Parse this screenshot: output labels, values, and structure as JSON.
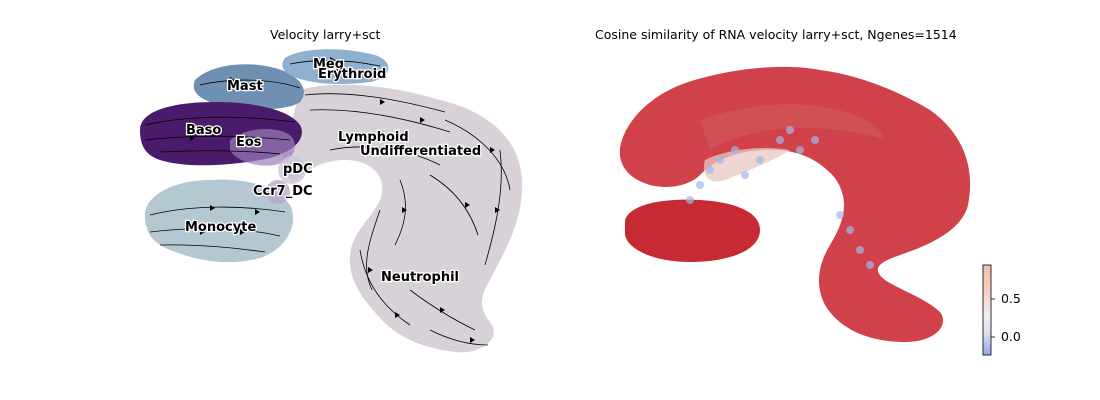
{
  "chart_data": [
    {
      "type": "scatter",
      "title": "Velocity larry+sct",
      "xlabel": "",
      "ylabel": "",
      "grid": false,
      "axes_visible": false,
      "streamlines": true,
      "cluster_labels": [
        "Meg",
        "Erythroid",
        "Mast",
        "Baso",
        "Eos",
        "Lymphoid",
        "Undifferentiated",
        "pDC",
        "Ccr7_DC",
        "Monocyte",
        "Neutrophil"
      ],
      "colors": {
        "Baso": "#4a1a6b",
        "Mast": "#6f8fb3",
        "Meg": "#7ea6c6",
        "Erythroid": "#8fb0cf",
        "Eos": "#9b7fb8",
        "Monocyte": "#b3c8d0",
        "Neutrophil": "#d8d2d8",
        "Undifferentiated": "#d8d2d8",
        "Lymphoid": "#d8d2d8"
      }
    },
    {
      "type": "scatter",
      "title": "Cosine similarity of RNA velocity larry+sct, Ngenes=1514",
      "xlabel": "",
      "ylabel": "",
      "grid": false,
      "axes_visible": false,
      "colormap": "coolwarm",
      "colorbar": {
        "ticks": [
          0.0,
          0.5
        ],
        "tick_labels": [
          "0.0",
          "0.5"
        ],
        "range": [
          -0.3,
          1.0
        ]
      },
      "colors": {
        "high": "#c8202a",
        "mid": "#e8c8c0",
        "low": "#8fb0e8"
      }
    }
  ]
}
